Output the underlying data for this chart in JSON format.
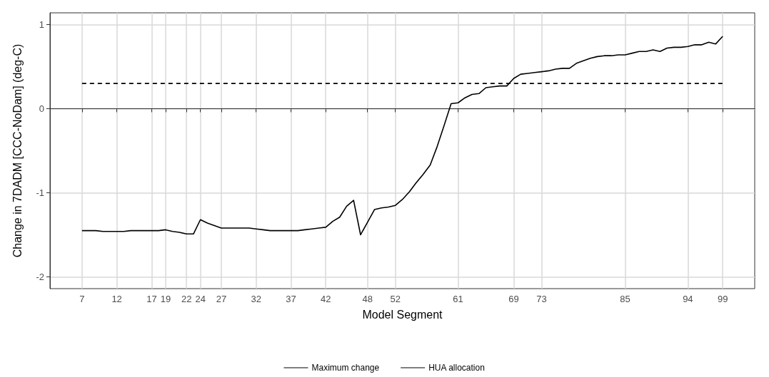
{
  "chart_data": {
    "type": "line",
    "xlabel": "Model Segment",
    "ylabel": "Change in 7DADM [CCC-NoDam] (deg-C)",
    "xlim": [
      2.4,
      103.6
    ],
    "xticks": [
      7,
      12,
      17,
      19,
      22,
      24,
      27,
      32,
      37,
      42,
      48,
      52,
      61,
      69,
      73,
      85,
      94,
      99
    ],
    "ylim": [
      -2.14,
      1.14
    ],
    "yticks": [
      -2,
      -1,
      0,
      1
    ],
    "grid": true,
    "legend": "bottom",
    "marker": "none",
    "series": [
      {
        "name": "Maximum change",
        "color": "#000000",
        "line_style": "solid",
        "x": [
          7,
          8,
          9,
          10,
          11,
          12,
          13,
          14,
          15,
          16,
          17,
          18,
          19,
          20,
          21,
          22,
          23,
          24,
          25,
          26,
          27,
          28,
          29,
          30,
          31,
          32,
          33,
          34,
          35,
          36,
          37,
          38,
          39,
          40,
          41,
          42,
          43,
          44,
          45,
          46,
          47,
          48,
          49,
          50,
          51,
          52,
          53,
          54,
          55,
          56,
          57,
          58,
          59,
          60,
          61,
          62,
          63,
          64,
          65,
          66,
          67,
          68,
          69,
          70,
          71,
          72,
          73,
          74,
          75,
          76,
          77,
          78,
          79,
          80,
          81,
          82,
          83,
          84,
          85,
          86,
          87,
          88,
          89,
          90,
          91,
          92,
          93,
          94,
          95,
          96,
          97,
          98,
          99
        ],
        "values": [
          -1.45,
          -1.45,
          -1.45,
          -1.46,
          -1.46,
          -1.46,
          -1.46,
          -1.45,
          -1.45,
          -1.45,
          -1.45,
          -1.45,
          -1.44,
          -1.46,
          -1.47,
          -1.49,
          -1.49,
          -1.32,
          -1.36,
          -1.39,
          -1.42,
          -1.42,
          -1.42,
          -1.42,
          -1.42,
          -1.43,
          -1.44,
          -1.45,
          -1.45,
          -1.45,
          -1.45,
          -1.45,
          -1.44,
          -1.43,
          -1.42,
          -1.41,
          -1.34,
          -1.29,
          -1.16,
          -1.09,
          -1.5,
          -1.35,
          -1.2,
          -1.18,
          -1.17,
          -1.15,
          -1.08,
          -0.99,
          -0.88,
          -0.78,
          -0.67,
          -0.45,
          -0.2,
          0.06,
          0.07,
          0.13,
          0.17,
          0.18,
          0.25,
          0.26,
          0.27,
          0.27,
          0.36,
          0.41,
          0.42,
          0.43,
          0.44,
          0.45,
          0.47,
          0.48,
          0.48,
          0.54,
          0.57,
          0.6,
          0.62,
          0.63,
          0.63,
          0.64,
          0.64,
          0.66,
          0.68,
          0.68,
          0.7,
          0.68,
          0.72,
          0.73,
          0.73,
          0.74,
          0.76,
          0.76,
          0.79,
          0.77,
          0.86
        ]
      },
      {
        "name": "HUA allocation",
        "color": "#000000",
        "line_style": "dashed",
        "x": [
          7,
          99
        ],
        "values": [
          0.3,
          0.3
        ]
      }
    ]
  }
}
